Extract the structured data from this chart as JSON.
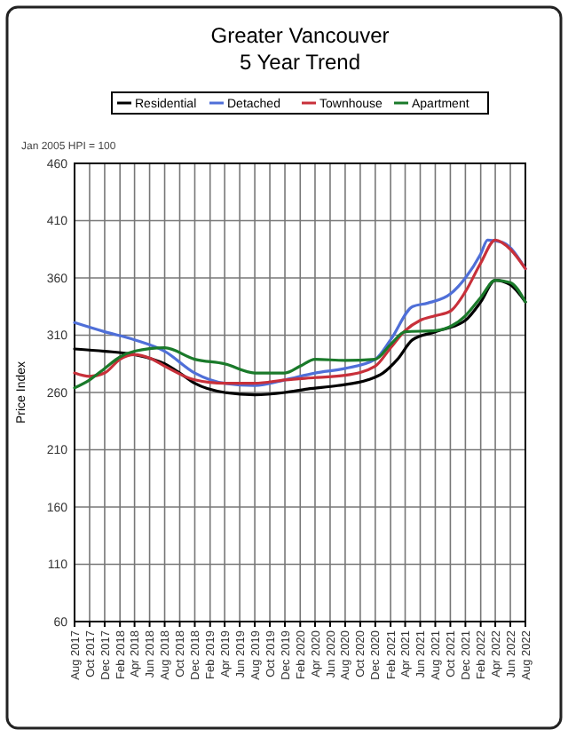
{
  "chart_data": {
    "type": "line",
    "title": "Greater Vancouver",
    "subtitle": "5 Year Trend",
    "ylabel": "Price Index",
    "annotations": [
      "Jan 2005 HPI = 100"
    ],
    "xlim": [
      "2017-08",
      "2022-08"
    ],
    "xticks": [
      {
        "value": "2017-08",
        "label": "Aug 2017"
      },
      {
        "value": "2017-10",
        "label": "Oct 2017"
      },
      {
        "value": "2017-12",
        "label": "Dec 2017"
      },
      {
        "value": "2018-02",
        "label": "Feb 2018"
      },
      {
        "value": "2018-04",
        "label": "Apr 2018"
      },
      {
        "value": "2018-06",
        "label": "Jun 2018"
      },
      {
        "value": "2018-08",
        "label": "Aug 2018"
      },
      {
        "value": "2018-10",
        "label": "Oct 2018"
      },
      {
        "value": "2018-12",
        "label": "Dec 2018"
      },
      {
        "value": "2019-02",
        "label": "Feb 2019"
      },
      {
        "value": "2019-04",
        "label": "Apr 2019"
      },
      {
        "value": "2019-06",
        "label": "Jun 2019"
      },
      {
        "value": "2019-08",
        "label": "Aug 2019"
      },
      {
        "value": "2019-10",
        "label": "Oct 2019"
      },
      {
        "value": "2019-12",
        "label": "Dec 2019"
      },
      {
        "value": "2020-02",
        "label": "Feb 2020"
      },
      {
        "value": "2020-04",
        "label": "Apr 2020"
      },
      {
        "value": "2020-06",
        "label": "Jun 2020"
      },
      {
        "value": "2020-08",
        "label": "Aug 2020"
      },
      {
        "value": "2020-10",
        "label": "Oct 2020"
      },
      {
        "value": "2020-12",
        "label": "Dec 2020"
      },
      {
        "value": "2021-02",
        "label": "Feb 2021"
      },
      {
        "value": "2021-04",
        "label": "Apr 2021"
      },
      {
        "value": "2021-06",
        "label": "Jun 2021"
      },
      {
        "value": "2021-08",
        "label": "Aug 2021"
      },
      {
        "value": "2021-10",
        "label": "Oct 2021"
      },
      {
        "value": "2021-12",
        "label": "Dec 2021"
      },
      {
        "value": "2022-02",
        "label": "Feb 2022"
      },
      {
        "value": "2022-04",
        "label": "Apr 2022"
      },
      {
        "value": "2022-06",
        "label": "Jun 2022"
      },
      {
        "value": "2022-08",
        "label": "Aug 2022"
      }
    ],
    "ylim": [
      60,
      460
    ],
    "yticks": [
      60,
      110,
      160,
      210,
      260,
      310,
      360,
      410,
      460
    ],
    "grid": true,
    "legend": "top",
    "line_style": "solid",
    "marker": "none",
    "series": [
      {
        "name": "Residential",
        "color": "#000000",
        "x": [
          "2017-08",
          "2017-12",
          "2018-04",
          "2018-08",
          "2018-10",
          "2018-12",
          "2019-04",
          "2019-08",
          "2019-12",
          "2020-03",
          "2020-07",
          "2020-11",
          "2021-01",
          "2021-03",
          "2021-05",
          "2021-08",
          "2021-12",
          "2022-02",
          "2022-04",
          "2022-06",
          "2022-08"
        ],
        "values": [
          298,
          296,
          293,
          285,
          277,
          268,
          260,
          258,
          260,
          263,
          266,
          271,
          277,
          289,
          306,
          313,
          323,
          339,
          358,
          354,
          339
        ]
      },
      {
        "name": "Detached",
        "color": "#4f6fd8",
        "x": [
          "2017-08",
          "2017-12",
          "2018-04",
          "2018-08",
          "2018-12",
          "2019-04",
          "2019-08",
          "2019-12",
          "2020-04",
          "2020-08",
          "2020-12",
          "2021-02",
          "2021-05",
          "2021-07",
          "2021-10",
          "2021-12",
          "2022-02",
          "2022-03",
          "2022-05",
          "2022-08"
        ],
        "values": [
          321,
          313,
          306,
          296,
          277,
          268,
          266,
          271,
          277,
          281,
          289,
          306,
          335,
          338,
          346,
          360,
          381,
          393,
          391,
          368
        ]
      },
      {
        "name": "Townhouse",
        "color": "#c8303a",
        "x": [
          "2017-08",
          "2017-10",
          "2017-12",
          "2018-02",
          "2018-04",
          "2018-06",
          "2018-08",
          "2018-12",
          "2019-04",
          "2019-08",
          "2019-12",
          "2020-04",
          "2020-08",
          "2020-12",
          "2021-02",
          "2021-04",
          "2021-06",
          "2021-08",
          "2021-10",
          "2021-12",
          "2022-02",
          "2022-04",
          "2022-06",
          "2022-08"
        ],
        "values": [
          277,
          274,
          277,
          289,
          293,
          290,
          283,
          271,
          268,
          268,
          271,
          273,
          275,
          283,
          299,
          314,
          323,
          327,
          331,
          348,
          373,
          393,
          385,
          368
        ]
      },
      {
        "name": "Apartment",
        "color": "#1a7a2a",
        "x": [
          "2017-08",
          "2017-10",
          "2017-12",
          "2018-02",
          "2018-04",
          "2018-08",
          "2018-12",
          "2019-04",
          "2019-08",
          "2019-12",
          "2020-02",
          "2020-04",
          "2020-08",
          "2020-12",
          "2021-02",
          "2021-04",
          "2021-08",
          "2021-12",
          "2022-02",
          "2022-04",
          "2022-06",
          "2022-08"
        ],
        "values": [
          264,
          271,
          281,
          291,
          296,
          299,
          289,
          285,
          277,
          277,
          283,
          289,
          288,
          289,
          302,
          313,
          314,
          327,
          343,
          358,
          356,
          339
        ]
      }
    ]
  }
}
